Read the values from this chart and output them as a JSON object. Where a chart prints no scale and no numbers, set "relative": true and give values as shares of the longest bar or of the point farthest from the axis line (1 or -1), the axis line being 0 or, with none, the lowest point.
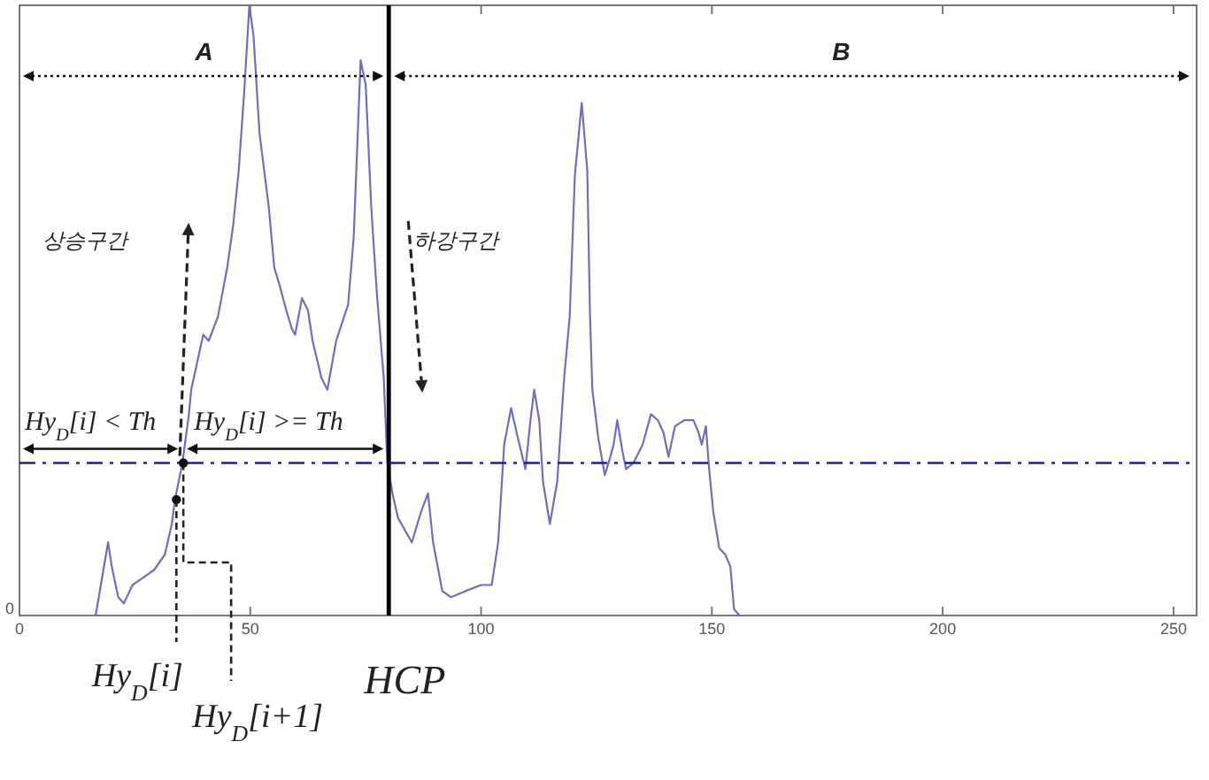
{
  "chart_data": {
    "type": "line",
    "relative": true,
    "x": [
      16.5,
      19.2,
      20,
      21.4,
      22.6,
      24.5,
      26.4,
      29.2,
      31.5,
      33,
      33.7,
      35.3,
      36.7,
      37.2,
      39.8,
      41,
      43,
      45,
      46.3,
      47.5,
      48.7,
      49.8,
      50.7,
      52,
      54,
      55.2,
      56.4,
      57.8,
      59,
      59.7,
      61.2,
      62.5,
      63.5,
      65.4,
      66.7,
      68.6,
      71.2,
      72.4,
      73.9,
      75,
      76.2,
      77.4,
      78.9,
      79.7,
      80.8,
      82,
      85,
      87,
      88.5,
      89.6,
      91.6,
      93.5,
      96.6,
      100,
      102.3,
      103.7,
      105,
      106.5,
      108,
      109.6,
      110.7,
      111.5,
      112.6,
      113.4,
      114.9,
      116.5,
      118,
      119.2,
      120.3,
      121.8,
      123,
      123.6,
      124.1,
      125.4,
      126.8,
      128,
      128.7,
      129.5,
      130.6,
      131.4,
      133,
      135,
      136.8,
      138.3,
      139.5,
      140.6,
      142,
      144,
      146,
      147.1,
      147.8,
      148.7,
      149.4,
      150.3,
      151.6,
      152.9,
      154,
      154.8,
      156
    ],
    "values": [
      0,
      0.12,
      0.08,
      0.03,
      0.02,
      0.05,
      0.06,
      0.075,
      0.1,
      0.15,
      0.19,
      0.25,
      0.33,
      0.37,
      0.46,
      0.45,
      0.49,
      0.57,
      0.64,
      0.73,
      0.86,
      1,
      0.95,
      0.79,
      0.67,
      0.57,
      0.54,
      0.5,
      0.47,
      0.46,
      0.52,
      0.5,
      0.45,
      0.39,
      0.37,
      0.45,
      0.51,
      0.62,
      0.91,
      0.87,
      0.67,
      0.53,
      0.39,
      0.25,
      0.2,
      0.16,
      0.12,
      0.17,
      0.2,
      0.12,
      0.04,
      0.03,
      0.04,
      0.05,
      0.05,
      0.12,
      0.28,
      0.34,
      0.29,
      0.24,
      0.32,
      0.37,
      0.32,
      0.22,
      0.15,
      0.22,
      0.39,
      0.49,
      0.72,
      0.84,
      0.73,
      0.49,
      0.37,
      0.29,
      0.23,
      0.26,
      0.28,
      0.32,
      0.27,
      0.24,
      0.25,
      0.28,
      0.33,
      0.32,
      0.3,
      0.26,
      0.31,
      0.32,
      0.32,
      0.3,
      0.28,
      0.31,
      0.24,
      0.17,
      0.11,
      0.1,
      0.08,
      0.01,
      0
    ],
    "color": "#6f6fb8",
    "xlim": [
      0,
      255
    ],
    "xticks": [
      0,
      50,
      100,
      150,
      200,
      250
    ],
    "ref_lines": [
      {
        "axis": "x",
        "value": 80,
        "label": "HCP",
        "color": "#000000",
        "line_style": "solid"
      },
      {
        "axis": "y",
        "value": 0.25,
        "color": "#1f1f8f",
        "line_style": "dashdot"
      }
    ],
    "annotations": [
      "A",
      "B",
      "상승구간",
      "하강구간",
      "Hy$_{D}$[i] < Th",
      "Hy$_{D}$[i] >= Th",
      "0",
      {
        "text": "Hy$_{D}$[i]",
        "x": 34,
        "y": 0.19
      },
      {
        "text": "Hy$_{D}$[i+1]",
        "x": 35.5,
        "y": 0.25
      }
    ]
  }
}
